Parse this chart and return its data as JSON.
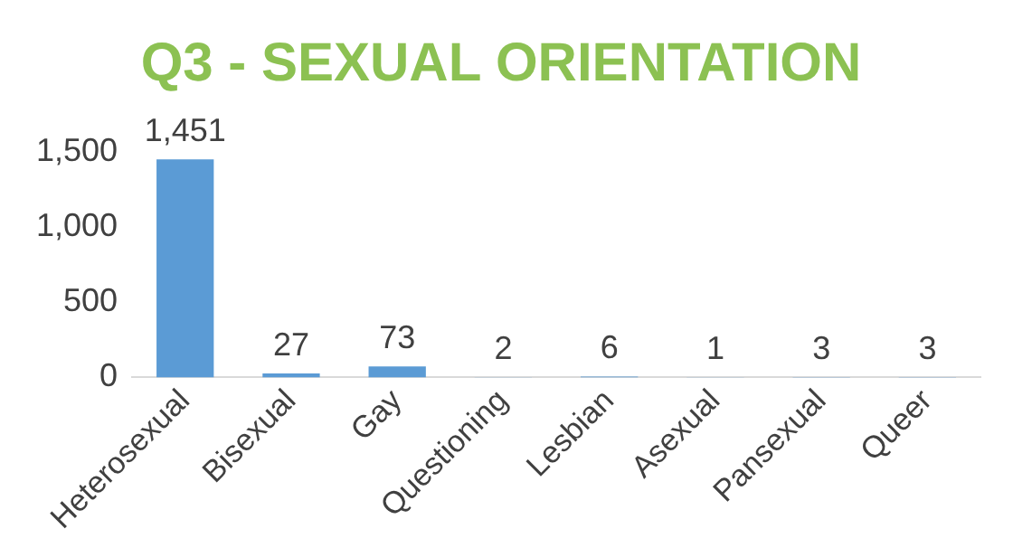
{
  "chart_data": {
    "type": "bar",
    "title": "Q3 - SEXUAL ORIENTATION",
    "categories": [
      "Heterosexual",
      "Bisexual",
      "Gay",
      "Questioning",
      "Lesbian",
      "Asexual",
      "Pansexual",
      "Queer"
    ],
    "values": [
      1451,
      27,
      73,
      2,
      6,
      1,
      3,
      3
    ],
    "value_labels": [
      "1,451",
      "27",
      "73",
      "2",
      "6",
      "1",
      "3",
      "3"
    ],
    "color": "#5b9bd5",
    "ylim": [
      0,
      1500
    ],
    "yticks": [
      {
        "value": 0,
        "label": "0"
      },
      {
        "value": 500,
        "label": "500"
      },
      {
        "value": 1000,
        "label": "1,000"
      },
      {
        "value": 1500,
        "label": "1,500"
      }
    ],
    "grid": false,
    "legend": false
  }
}
